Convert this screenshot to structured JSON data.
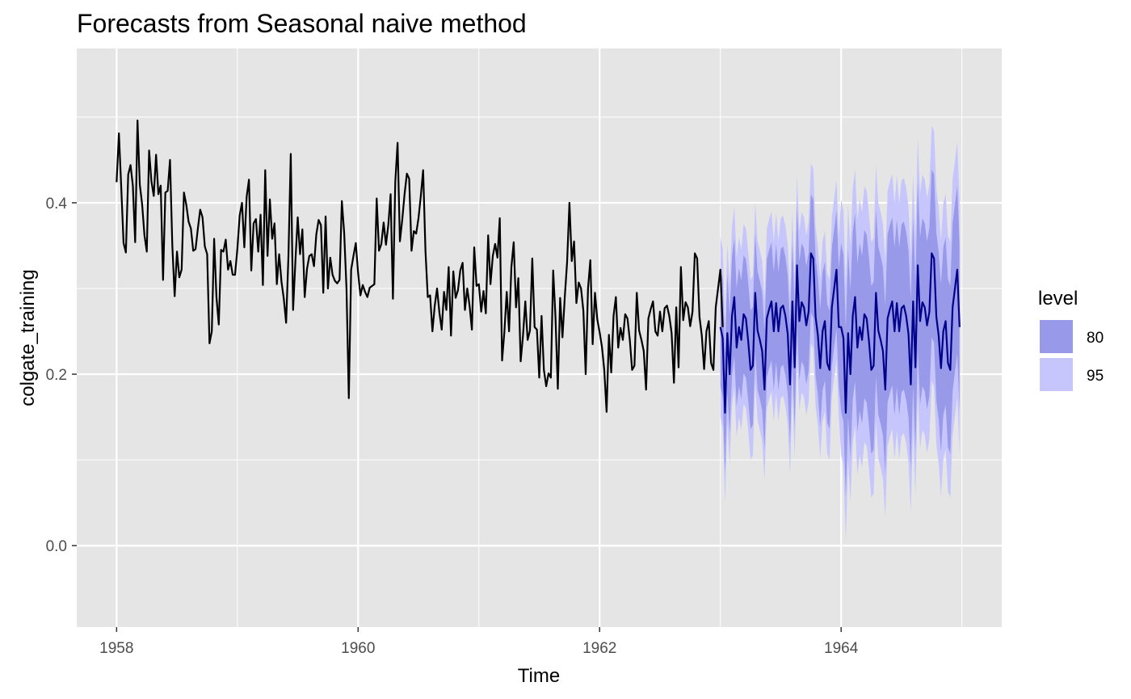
{
  "chart_data": {
    "type": "line",
    "title": "Forecasts from Seasonal naive method",
    "xlabel": "Time",
    "ylabel": "colgate_training",
    "xlim": [
      1957.67,
      1965.33
    ],
    "ylim": [
      -0.095,
      0.58
    ],
    "x_ticks": [
      1958,
      1960,
      1962,
      1964
    ],
    "y_ticks": [
      0.0,
      0.2,
      0.4
    ],
    "grid": true,
    "colors": {
      "panel": "#e5e5e5",
      "grid": "#ffffff",
      "history": "#000000",
      "forecast": "#00008b",
      "band80": "#9999ea",
      "band95": "#c6c6fd"
    },
    "legend": {
      "title": "level",
      "position": "right",
      "items": [
        {
          "label": "80",
          "color": "#9999ea"
        },
        {
          "label": "95",
          "color": "#c6c6fd"
        }
      ]
    },
    "history": {
      "start": 1958.0,
      "frequency": 52,
      "values": [
        0.424,
        0.481,
        0.418,
        0.353,
        0.342,
        0.433,
        0.444,
        0.42,
        0.354,
        0.496,
        0.421,
        0.398,
        0.362,
        0.343,
        0.461,
        0.425,
        0.408,
        0.456,
        0.41,
        0.42,
        0.31,
        0.412,
        0.414,
        0.45,
        0.35,
        0.291,
        0.343,
        0.313,
        0.322,
        0.412,
        0.398,
        0.378,
        0.37,
        0.344,
        0.346,
        0.37,
        0.392,
        0.383,
        0.349,
        0.34,
        0.236,
        0.25,
        0.358,
        0.29,
        0.258,
        0.345,
        0.343,
        0.357,
        0.322,
        0.332,
        0.316,
        0.316,
        0.346,
        0.385,
        0.4,
        0.348,
        0.407,
        0.427,
        0.321,
        0.376,
        0.381,
        0.343,
        0.386,
        0.304,
        0.438,
        0.338,
        0.404,
        0.358,
        0.376,
        0.305,
        0.34,
        0.308,
        0.288,
        0.26,
        0.338,
        0.457,
        0.275,
        0.332,
        0.383,
        0.34,
        0.369,
        0.29,
        0.323,
        0.338,
        0.34,
        0.326,
        0.363,
        0.38,
        0.374,
        0.295,
        0.384,
        0.3,
        0.336,
        0.316,
        0.309,
        0.306,
        0.31,
        0.402,
        0.365,
        0.3,
        0.172,
        0.322,
        0.338,
        0.353,
        0.318,
        0.292,
        0.304,
        0.296,
        0.29,
        0.301,
        0.303,
        0.305,
        0.405,
        0.344,
        0.352,
        0.377,
        0.351,
        0.374,
        0.41,
        0.288,
        0.424,
        0.47,
        0.355,
        0.38,
        0.41,
        0.434,
        0.428,
        0.344,
        0.367,
        0.364,
        0.382,
        0.408,
        0.438,
        0.344,
        0.29,
        0.292,
        0.25,
        0.28,
        0.3,
        0.272,
        0.252,
        0.296,
        0.275,
        0.325,
        0.245,
        0.32,
        0.289,
        0.298,
        0.321,
        0.33,
        0.275,
        0.3,
        0.28,
        0.252,
        0.348,
        0.303,
        0.305,
        0.273,
        0.297,
        0.271,
        0.362,
        0.305,
        0.338,
        0.352,
        0.336,
        0.382,
        0.216,
        0.25,
        0.296,
        0.25,
        0.325,
        0.354,
        0.278,
        0.312,
        0.215,
        0.245,
        0.285,
        0.24,
        0.251,
        0.335,
        0.255,
        0.252,
        0.196,
        0.268,
        0.205,
        0.186,
        0.201,
        0.196,
        0.321,
        0.266,
        0.183,
        0.289,
        0.243,
        0.29,
        0.331,
        0.4,
        0.332,
        0.355,
        0.283,
        0.307,
        0.3,
        0.274,
        0.2,
        0.3,
        0.333,
        0.235,
        0.295,
        0.264,
        0.249,
        0.232,
        0.205,
        0.156,
        0.246,
        0.202,
        0.268,
        0.29,
        0.231,
        0.254,
        0.24,
        0.27,
        0.265,
        0.24,
        0.205,
        0.21,
        0.295,
        0.251,
        0.24,
        0.227,
        0.182,
        0.265,
        0.276,
        0.285,
        0.25,
        0.245,
        0.273,
        0.25,
        0.277,
        0.28,
        0.268,
        0.248,
        0.19,
        0.278,
        0.208,
        0.325,
        0.263,
        0.284,
        0.278,
        0.256,
        0.273,
        0.341,
        0.335,
        0.267,
        0.245,
        0.206,
        0.25,
        0.262,
        0.213,
        0.205,
        0.278,
        0.3,
        0.322,
        0.255
      ]
    },
    "forecast": {
      "start": 1963.0,
      "frequency": 52,
      "values": [
        0.255,
        0.242,
        0.155,
        0.248,
        0.2,
        0.268,
        0.29,
        0.231,
        0.255,
        0.24,
        0.27,
        0.265,
        0.238,
        0.205,
        0.21,
        0.295,
        0.251,
        0.24,
        0.227,
        0.182,
        0.265,
        0.276,
        0.285,
        0.25,
        0.283,
        0.25,
        0.277,
        0.28,
        0.268,
        0.247,
        0.188,
        0.285,
        0.208,
        0.327,
        0.262,
        0.284,
        0.278,
        0.257,
        0.273,
        0.341,
        0.335,
        0.267,
        0.245,
        0.207,
        0.25,
        0.262,
        0.213,
        0.205,
        0.278,
        0.3,
        0.322,
        0.255,
        0.255,
        0.242,
        0.155,
        0.248,
        0.2,
        0.268,
        0.29,
        0.231,
        0.255,
        0.24,
        0.27,
        0.265,
        0.238,
        0.205,
        0.21,
        0.295,
        0.251,
        0.24,
        0.227,
        0.182,
        0.265,
        0.276,
        0.285,
        0.25,
        0.283,
        0.25,
        0.277,
        0.28,
        0.268,
        0.247,
        0.188,
        0.285,
        0.208,
        0.327,
        0.262,
        0.284,
        0.278,
        0.257,
        0.273,
        0.341,
        0.335,
        0.267,
        0.245,
        0.207,
        0.25,
        0.262,
        0.213,
        0.205,
        0.278,
        0.3,
        0.322,
        0.255
      ],
      "interval_halfwidth": {
        "level80_year1": 0.069,
        "level95_year1": 0.105,
        "level80_year2": 0.098,
        "level95_year2": 0.149
      }
    }
  }
}
